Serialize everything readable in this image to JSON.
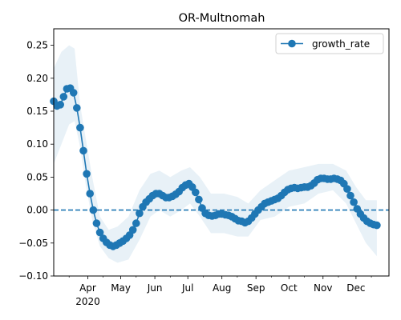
{
  "chart_data": {
    "type": "line",
    "title": "OR-Multnomah",
    "xlabel": "",
    "ylabel": "",
    "x_range": [
      "2020-03-01",
      "2020-12-31"
    ],
    "ylim": [
      -0.1,
      0.275
    ],
    "grid": false,
    "legend_position": "top-right",
    "x_tick_labels": [
      "Apr",
      "May",
      "Jun",
      "Jul",
      "Aug",
      "Sep",
      "Oct",
      "Nov",
      "Dec"
    ],
    "x_tick_dates": [
      "2020-04-01",
      "2020-05-01",
      "2020-06-01",
      "2020-07-01",
      "2020-08-01",
      "2020-09-01",
      "2020-10-01",
      "2020-11-01",
      "2020-12-01"
    ],
    "x_year_label": "2020",
    "y_ticks": [
      -0.1,
      -0.05,
      0.0,
      0.05,
      0.1,
      0.15,
      0.2,
      0.25
    ],
    "y_tick_labels": [
      "−0.10",
      "−0.05",
      "0.00",
      "0.05",
      "0.10",
      "0.15",
      "0.20",
      "0.25"
    ],
    "reference_line": {
      "y": 0.0,
      "style": "dashed"
    },
    "series": [
      {
        "name": "growth_rate",
        "color": "#1f77b4",
        "band_color": "#1f77b4",
        "marker": "circle",
        "points": [
          [
            "2020-03-01",
            0.165
          ],
          [
            "2020-03-04",
            0.158
          ],
          [
            "2020-03-07",
            0.16
          ],
          [
            "2020-03-10",
            0.172
          ],
          [
            "2020-03-13",
            0.184
          ],
          [
            "2020-03-16",
            0.185
          ],
          [
            "2020-03-19",
            0.178
          ],
          [
            "2020-03-22",
            0.155
          ],
          [
            "2020-03-25",
            0.125
          ],
          [
            "2020-03-28",
            0.09
          ],
          [
            "2020-03-31",
            0.055
          ],
          [
            "2020-04-03",
            0.025
          ],
          [
            "2020-04-06",
            0.0
          ],
          [
            "2020-04-09",
            -0.02
          ],
          [
            "2020-04-12",
            -0.034
          ],
          [
            "2020-04-15",
            -0.043
          ],
          [
            "2020-04-18",
            -0.049
          ],
          [
            "2020-04-21",
            -0.053
          ],
          [
            "2020-04-24",
            -0.055
          ],
          [
            "2020-04-27",
            -0.053
          ],
          [
            "2020-04-30",
            -0.05
          ],
          [
            "2020-05-03",
            -0.047
          ],
          [
            "2020-05-06",
            -0.043
          ],
          [
            "2020-05-09",
            -0.038
          ],
          [
            "2020-05-12",
            -0.03
          ],
          [
            "2020-05-15",
            -0.02
          ],
          [
            "2020-05-18",
            -0.005
          ],
          [
            "2020-05-21",
            0.005
          ],
          [
            "2020-05-24",
            0.012
          ],
          [
            "2020-05-27",
            0.017
          ],
          [
            "2020-05-30",
            0.022
          ],
          [
            "2020-06-02",
            0.025
          ],
          [
            "2020-06-05",
            0.025
          ],
          [
            "2020-06-08",
            0.022
          ],
          [
            "2020-06-11",
            0.019
          ],
          [
            "2020-06-14",
            0.019
          ],
          [
            "2020-06-17",
            0.021
          ],
          [
            "2020-06-20",
            0.024
          ],
          [
            "2020-06-23",
            0.028
          ],
          [
            "2020-06-26",
            0.034
          ],
          [
            "2020-06-29",
            0.038
          ],
          [
            "2020-07-02",
            0.04
          ],
          [
            "2020-07-05",
            0.035
          ],
          [
            "2020-07-08",
            0.027
          ],
          [
            "2020-07-11",
            0.016
          ],
          [
            "2020-07-14",
            0.003
          ],
          [
            "2020-07-17",
            -0.005
          ],
          [
            "2020-07-20",
            -0.008
          ],
          [
            "2020-07-23",
            -0.009
          ],
          [
            "2020-07-26",
            -0.008
          ],
          [
            "2020-07-29",
            -0.006
          ],
          [
            "2020-08-01",
            -0.006
          ],
          [
            "2020-08-04",
            -0.007
          ],
          [
            "2020-08-07",
            -0.008
          ],
          [
            "2020-08-10",
            -0.01
          ],
          [
            "2020-08-13",
            -0.013
          ],
          [
            "2020-08-16",
            -0.016
          ],
          [
            "2020-08-19",
            -0.017
          ],
          [
            "2020-08-22",
            -0.019
          ],
          [
            "2020-08-25",
            -0.017
          ],
          [
            "2020-08-28",
            -0.012
          ],
          [
            "2020-08-31",
            -0.006
          ],
          [
            "2020-09-03",
            0.0
          ],
          [
            "2020-09-06",
            0.005
          ],
          [
            "2020-09-09",
            0.01
          ],
          [
            "2020-09-12",
            0.012
          ],
          [
            "2020-09-15",
            0.014
          ],
          [
            "2020-09-18",
            0.016
          ],
          [
            "2020-09-21",
            0.018
          ],
          [
            "2020-09-24",
            0.022
          ],
          [
            "2020-09-27",
            0.027
          ],
          [
            "2020-09-30",
            0.031
          ],
          [
            "2020-10-03",
            0.033
          ],
          [
            "2020-10-06",
            0.034
          ],
          [
            "2020-10-09",
            0.033
          ],
          [
            "2020-10-12",
            0.034
          ],
          [
            "2020-10-15",
            0.035
          ],
          [
            "2020-10-18",
            0.035
          ],
          [
            "2020-10-21",
            0.037
          ],
          [
            "2020-10-24",
            0.041
          ],
          [
            "2020-10-27",
            0.046
          ],
          [
            "2020-10-30",
            0.048
          ],
          [
            "2020-11-02",
            0.048
          ],
          [
            "2020-11-05",
            0.047
          ],
          [
            "2020-11-08",
            0.047
          ],
          [
            "2020-11-11",
            0.048
          ],
          [
            "2020-11-14",
            0.047
          ],
          [
            "2020-11-17",
            0.045
          ],
          [
            "2020-11-20",
            0.04
          ],
          [
            "2020-11-23",
            0.032
          ],
          [
            "2020-11-26",
            0.022
          ],
          [
            "2020-11-29",
            0.012
          ],
          [
            "2020-12-02",
            0.002
          ],
          [
            "2020-12-05",
            -0.006
          ],
          [
            "2020-12-08",
            -0.012
          ],
          [
            "2020-12-11",
            -0.017
          ],
          [
            "2020-12-14",
            -0.02
          ],
          [
            "2020-12-17",
            -0.022
          ],
          [
            "2020-12-20",
            -0.023
          ]
        ],
        "band": [
          [
            "2020-03-01",
            0.07,
            0.215
          ],
          [
            "2020-03-08",
            0.1,
            0.24
          ],
          [
            "2020-03-15",
            0.13,
            0.25
          ],
          [
            "2020-03-20",
            0.135,
            0.245
          ],
          [
            "2020-03-25",
            0.095,
            0.16
          ],
          [
            "2020-03-30",
            0.04,
            0.11
          ],
          [
            "2020-04-05",
            -0.015,
            0.05
          ],
          [
            "2020-04-12",
            -0.055,
            -0.01
          ],
          [
            "2020-04-20",
            -0.073,
            -0.03
          ],
          [
            "2020-04-28",
            -0.08,
            -0.025
          ],
          [
            "2020-05-08",
            -0.075,
            -0.01
          ],
          [
            "2020-05-18",
            -0.045,
            0.03
          ],
          [
            "2020-05-28",
            -0.01,
            0.055
          ],
          [
            "2020-06-05",
            0.0,
            0.06
          ],
          [
            "2020-06-15",
            -0.01,
            0.05
          ],
          [
            "2020-06-25",
            0.0,
            0.06
          ],
          [
            "2020-07-03",
            0.01,
            0.065
          ],
          [
            "2020-07-12",
            -0.01,
            0.05
          ],
          [
            "2020-07-22",
            -0.035,
            0.025
          ],
          [
            "2020-08-03",
            -0.035,
            0.025
          ],
          [
            "2020-08-15",
            -0.04,
            0.02
          ],
          [
            "2020-08-25",
            -0.04,
            0.01
          ],
          [
            "2020-09-05",
            -0.015,
            0.03
          ],
          [
            "2020-09-18",
            -0.01,
            0.045
          ],
          [
            "2020-10-01",
            0.005,
            0.06
          ],
          [
            "2020-10-15",
            0.01,
            0.065
          ],
          [
            "2020-10-28",
            0.025,
            0.07
          ],
          [
            "2020-11-10",
            0.03,
            0.07
          ],
          [
            "2020-11-22",
            0.01,
            0.06
          ],
          [
            "2020-12-01",
            -0.02,
            0.035
          ],
          [
            "2020-12-10",
            -0.05,
            0.015
          ],
          [
            "2020-12-20",
            -0.07,
            0.015
          ]
        ]
      }
    ]
  }
}
